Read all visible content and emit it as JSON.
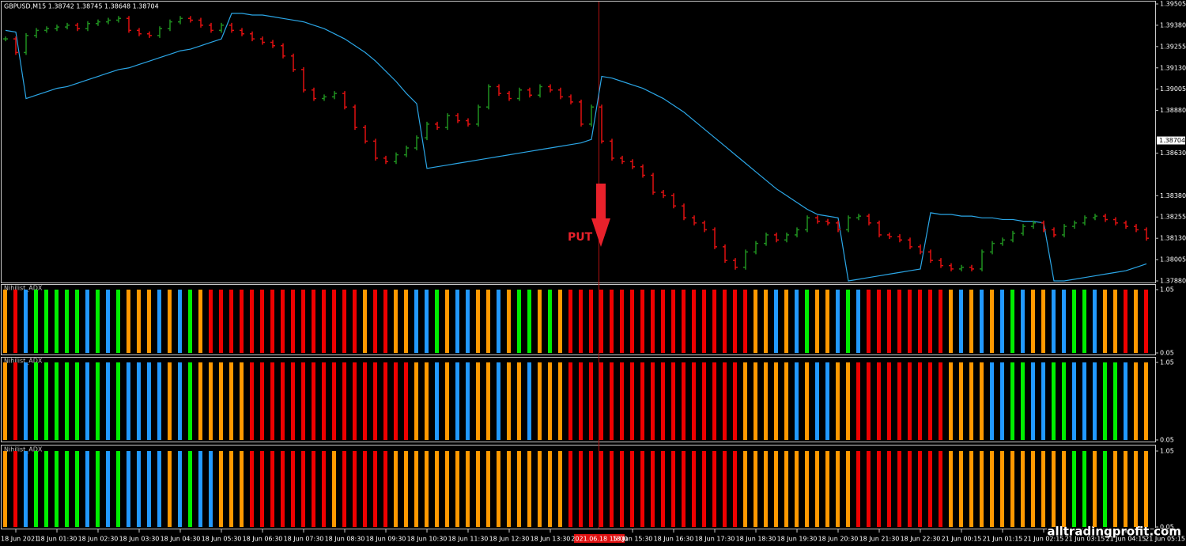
{
  "chart_data": [
    {
      "type": "candlestick",
      "title": "GBPUSD,M15  1.38742 1.38745 1.38648 1.38704",
      "categories": [
        null,
        "18 Jun 2021",
        null,
        null,
        null,
        "18 Jun 01:30",
        null,
        null,
        null,
        "18 Jun 02:30",
        null,
        null,
        null,
        "18 Jun 03:30",
        null,
        null,
        null,
        "18 Jun 04:30",
        null,
        null,
        null,
        "18 Jun 05:30",
        null,
        null,
        null,
        "18 Jun 06:30",
        null,
        null,
        null,
        "18 Jun 07:30",
        null,
        null,
        null,
        "18 Jun 08:30",
        null,
        null,
        null,
        "18 Jun 09:30",
        null,
        null,
        null,
        "18 Jun 10:30",
        null,
        null,
        null,
        "18 Jun 11:30",
        null,
        null,
        null,
        "18 Jun 12:30",
        null,
        null,
        null,
        "18 Jun 13:30",
        null,
        null,
        null,
        null,
        null,
        null,
        null,
        "18 Jun 15:30",
        null,
        null,
        null,
        "18 Jun 16:30",
        null,
        null,
        null,
        "18 Jun 17:30",
        null,
        null,
        null,
        "18 Jun 18:30",
        null,
        null,
        null,
        "18 Jun 19:30",
        null,
        null,
        null,
        "18 Jun 20:30",
        null,
        null,
        null,
        "18 Jun 21:30",
        null,
        null,
        null,
        "18 Jun 22:30",
        null,
        null,
        null,
        "21 Jun 00:15",
        null,
        null,
        null,
        "21 Jun 01:15",
        null,
        null,
        null,
        "21 Jun 02:15",
        null,
        null,
        null,
        "21 Jun 03:15",
        null,
        null,
        null,
        "21 Jun 04:15",
        null,
        null,
        null,
        "21 Jun 05:15"
      ],
      "values": [
        1.393,
        1.3922,
        1.3932,
        1.3935,
        1.3936,
        1.3937,
        1.3938,
        1.3936,
        1.3939,
        1.394,
        1.3941,
        1.3942,
        1.3935,
        1.3933,
        1.3932,
        1.3936,
        1.394,
        1.3942,
        1.3941,
        1.3938,
        1.3935,
        1.3938,
        1.3935,
        1.3933,
        1.393,
        1.3928,
        1.3926,
        1.392,
        1.3912,
        1.39,
        1.3895,
        1.3896,
        1.3898,
        1.389,
        1.3878,
        1.387,
        1.386,
        1.3858,
        1.3862,
        1.3866,
        1.3872,
        1.388,
        1.3878,
        1.3885,
        1.3882,
        1.388,
        1.389,
        1.3902,
        1.3898,
        1.3895,
        1.39,
        1.3897,
        1.3902,
        1.39,
        1.3896,
        1.3893,
        1.388,
        1.389,
        1.387,
        1.386,
        1.3858,
        1.3855,
        1.385,
        1.384,
        1.3838,
        1.3832,
        1.3825,
        1.3822,
        1.3818,
        1.3808,
        1.38,
        1.3796,
        1.3805,
        1.381,
        1.3815,
        1.3812,
        1.3815,
        1.3818,
        1.3825,
        1.3823,
        1.3822,
        1.3818,
        1.3825,
        1.3826,
        1.3822,
        1.3815,
        1.3814,
        1.3812,
        1.3808,
        1.3805,
        1.38,
        1.3797,
        1.3795,
        1.3796,
        1.3795,
        1.3805,
        1.381,
        1.3812,
        1.3816,
        1.382,
        1.3822,
        1.3818,
        1.3815,
        1.382,
        1.3822,
        1.3825,
        1.3826,
        1.3824,
        1.3822,
        1.382,
        1.3818,
        1.3813,
        null,
        null
      ],
      "up_color": "#1f8f1f",
      "down_color": "#e01010",
      "line": {
        "color": "#2ba6e6",
        "values": [
          1.3935,
          1.3934,
          1.3895,
          1.3897,
          1.3899,
          1.3901,
          1.3902,
          1.3904,
          1.3906,
          1.3908,
          1.391,
          1.3912,
          1.3913,
          1.3915,
          1.3917,
          1.3919,
          1.3921,
          1.3923,
          1.3924,
          1.3926,
          1.3928,
          1.393,
          1.3945,
          1.3945,
          1.3944,
          1.3944,
          1.3943,
          1.3942,
          1.3941,
          1.394,
          1.3938,
          1.3936,
          1.3933,
          1.393,
          1.3926,
          1.3922,
          1.3917,
          1.3911,
          1.3905,
          1.3898,
          1.3892,
          1.3854,
          1.3855,
          1.3856,
          1.3857,
          1.3858,
          1.3859,
          1.386,
          1.3861,
          1.3862,
          1.3863,
          1.3864,
          1.3865,
          1.3866,
          1.3867,
          1.3868,
          1.3869,
          1.3871,
          1.3908,
          1.3907,
          1.3905,
          1.3903,
          1.3901,
          1.3898,
          1.3895,
          1.3891,
          1.3887,
          1.3882,
          1.3877,
          1.3872,
          1.3867,
          1.3862,
          1.3857,
          1.3852,
          1.3847,
          1.3842,
          1.3838,
          1.3834,
          1.383,
          1.3827,
          1.3826,
          1.3825,
          1.3788,
          1.3789,
          1.379,
          1.3791,
          1.3792,
          1.3793,
          1.3794,
          1.3795,
          1.3828,
          1.3827,
          1.3827,
          1.3826,
          1.3826,
          1.3825,
          1.3825,
          1.3824,
          1.3824,
          1.3823,
          1.3823,
          1.3822,
          1.3788,
          1.3788,
          1.3789,
          1.379,
          1.3791,
          1.3792,
          1.3793,
          1.3794,
          1.3796,
          1.3798,
          null,
          null
        ]
      },
      "ylim": [
        1.3788,
        1.39505
      ],
      "yticks": [
        1.39505,
        {
          "value": 1.3938,
          "label": "1.39380"
        },
        1.39255,
        {
          "value": 1.3913,
          "label": "1.39130"
        },
        1.39005,
        {
          "value": 1.3888,
          "label": "1.38880"
        },
        {
          "value": 1.3863,
          "label": "1.38630"
        },
        {
          "value": 1.3838,
          "label": "1.38380"
        },
        1.38255,
        {
          "value": 1.3813,
          "label": "1.38130"
        },
        1.38005,
        {
          "value": 1.3788,
          "label": "1.37880"
        }
      ],
      "last_price": 1.38704,
      "annotation": "PUT",
      "cursor": "2021.06.18 15:00",
      "watermark": "alltradingprofit.com",
      "grid": false
    },
    {
      "type": "bar",
      "title": "Nihilist_ADX",
      "ylim": [
        0.05,
        1.05
      ],
      "yticks": [
        0.05,
        1.05
      ],
      "values": [
        1.05,
        1.05,
        1.05,
        1.05,
        1.05,
        1.05,
        1.05,
        1.05,
        1.05,
        1.05,
        1.05,
        1.05,
        1.05,
        1.05,
        1.05,
        1.05,
        1.05,
        1.05,
        1.05,
        1.05,
        1.05,
        1.05,
        1.05,
        1.05,
        1.05,
        1.05,
        1.05,
        1.05,
        1.05,
        1.05,
        1.05,
        1.05,
        1.05,
        1.05,
        1.05,
        1.05,
        1.05,
        1.05,
        1.05,
        1.05,
        1.05,
        1.05,
        1.05,
        1.05,
        1.05,
        1.05,
        1.05,
        1.05,
        1.05,
        1.05,
        1.05,
        1.05,
        1.05,
        1.05,
        1.05,
        1.05,
        1.05,
        1.05,
        1.05,
        1.05,
        1.05,
        1.05,
        1.05,
        1.05,
        1.05,
        1.05,
        1.05,
        1.05,
        1.05,
        1.05,
        1.05,
        1.05,
        1.05,
        1.05,
        1.05,
        1.05,
        1.05,
        1.05,
        1.05,
        1.05,
        1.05,
        1.05,
        1.05,
        1.05,
        1.05,
        1.05,
        1.05,
        1.05,
        1.05,
        1.05,
        1.05,
        1.05,
        1.05,
        1.05,
        1.05,
        1.05,
        1.05,
        1.05,
        1.05,
        1.05,
        1.05,
        1.05,
        1.05,
        1.05,
        1.05,
        1.05,
        1.05,
        1.05,
        1.05,
        1.05,
        1.05,
        1.05
      ],
      "colors": [
        "#f90",
        "#e00",
        "#29f",
        "#0e0",
        "#0e0",
        "#0e0",
        "#0e0",
        "#0e0",
        "#29f",
        "#0e0",
        "#29f",
        "#0e0",
        "#f90",
        "#f90",
        "#f90",
        "#29f",
        "#f90",
        "#29f",
        "#0e0",
        "#f90",
        "#e00",
        "#e00",
        "#e00",
        "#e00",
        "#e00",
        "#e00",
        "#e00",
        "#e00",
        "#e00",
        "#e00",
        "#e00",
        "#e00",
        "#e00",
        "#e00",
        "#e00",
        "#f90",
        "#e00",
        "#e00",
        "#f90",
        "#f90",
        "#29f",
        "#29f",
        "#0e0",
        "#f90",
        "#29f",
        "#29f",
        "#f90",
        "#f90",
        "#29f",
        "#f90",
        "#0e0",
        "#0e0",
        "#f90",
        "#0e0",
        "#f90",
        "#e00",
        "#e00",
        "#e00",
        "#e00",
        "#e00",
        "#e00",
        "#e00",
        "#e00",
        "#e00",
        "#e00",
        "#e00",
        "#e00",
        "#e00",
        "#e00",
        "#e00",
        "#e00",
        "#e00",
        "#e00",
        "#f90",
        "#f90",
        "#29f",
        "#f90",
        "#29f",
        "#0e0",
        "#f90",
        "#f90",
        "#29f",
        "#0e0",
        "#29f",
        "#e00",
        "#e00",
        "#e00",
        "#e00",
        "#e00",
        "#e00",
        "#e00",
        "#e00",
        "#f90",
        "#29f",
        "#f90",
        "#29f",
        "#f90",
        "#29f",
        "#0e0",
        "#29f",
        "#f90",
        "#f90",
        "#29f",
        "#29f",
        "#0e0",
        "#0e0",
        "#29f",
        "#f90",
        "#f90",
        "#e00",
        "#f90",
        "#e00"
      ]
    },
    {
      "type": "bar",
      "title": "Nihilist_ADX",
      "ylim": [
        0.05,
        1.05
      ],
      "yticks": [
        0.05,
        1.05
      ],
      "values": [
        1.05,
        1.05,
        1.05,
        1.05,
        1.05,
        1.05,
        1.05,
        1.05,
        1.05,
        1.05,
        1.05,
        1.05,
        1.05,
        1.05,
        1.05,
        1.05,
        1.05,
        1.05,
        1.05,
        1.05,
        1.05,
        1.05,
        1.05,
        1.05,
        1.05,
        1.05,
        1.05,
        1.05,
        1.05,
        1.05,
        1.05,
        1.05,
        1.05,
        1.05,
        1.05,
        1.05,
        1.05,
        1.05,
        1.05,
        1.05,
        1.05,
        1.05,
        1.05,
        1.05,
        1.05,
        1.05,
        1.05,
        1.05,
        1.05,
        1.05,
        1.05,
        1.05,
        1.05,
        1.05,
        1.05,
        1.05,
        1.05,
        1.05,
        1.05,
        1.05,
        1.05,
        1.05,
        1.05,
        1.05,
        1.05,
        1.05,
        1.05,
        1.05,
        1.05,
        1.05,
        1.05,
        1.05,
        1.05,
        1.05,
        1.05,
        1.05,
        1.05,
        1.05,
        1.05,
        1.05,
        1.05,
        1.05,
        1.05,
        1.05,
        1.05,
        1.05,
        1.05,
        1.05,
        1.05,
        1.05,
        1.05,
        1.05,
        1.05,
        1.05,
        1.05,
        1.05,
        1.05,
        1.05,
        1.05,
        1.05,
        1.05,
        1.05,
        1.05,
        1.05,
        1.05,
        1.05,
        1.05,
        1.05,
        1.05,
        1.05,
        1.05,
        1.05
      ],
      "colors": [
        "#f90",
        "#e00",
        "#29f",
        "#0e0",
        "#0e0",
        "#0e0",
        "#0e0",
        "#0e0",
        "#29f",
        "#0e0",
        "#29f",
        "#0e0",
        "#29f",
        "#29f",
        "#29f",
        "#29f",
        "#f90",
        "#29f",
        "#0e0",
        "#f90",
        "#f90",
        "#f90",
        "#f90",
        "#f90",
        "#e00",
        "#e00",
        "#e00",
        "#e00",
        "#e00",
        "#e00",
        "#e00",
        "#e00",
        "#e00",
        "#e00",
        "#e00",
        "#e00",
        "#e00",
        "#e00",
        "#e00",
        "#e00",
        "#f90",
        "#f90",
        "#29f",
        "#f90",
        "#29f",
        "#29f",
        "#f90",
        "#f90",
        "#29f",
        "#f90",
        "#f90",
        "#29f",
        "#f90",
        "#f90",
        "#f90",
        "#e00",
        "#e00",
        "#e00",
        "#e00",
        "#e00",
        "#e00",
        "#e00",
        "#e00",
        "#e00",
        "#e00",
        "#e00",
        "#e00",
        "#e00",
        "#e00",
        "#e00",
        "#e00",
        "#e00",
        "#f90",
        "#f90",
        "#f90",
        "#f90",
        "#f90",
        "#29f",
        "#f90",
        "#29f",
        "#29f",
        "#f90",
        "#f90",
        "#e00",
        "#e00",
        "#e00",
        "#e00",
        "#e00",
        "#e00",
        "#e00",
        "#e00",
        "#e00",
        "#f90",
        "#f90",
        "#f90",
        "#f90",
        "#29f",
        "#29f",
        "#0e0",
        "#0e0",
        "#29f",
        "#29f",
        "#0e0",
        "#0e0",
        "#29f",
        "#29f",
        "#29f",
        "#0e0",
        "#0e0",
        "#29f",
        "#f90",
        "#f90"
      ]
    },
    {
      "type": "bar",
      "title": "Nihilist_ADX",
      "ylim": [
        0.05,
        1.05
      ],
      "yticks": [
        0.05,
        1.05
      ],
      "values": [
        1.05,
        1.05,
        1.05,
        1.05,
        1.05,
        1.05,
        1.05,
        1.05,
        1.05,
        1.05,
        1.05,
        1.05,
        1.05,
        1.05,
        1.05,
        1.05,
        1.05,
        1.05,
        1.05,
        1.05,
        1.05,
        1.05,
        1.05,
        1.05,
        1.05,
        1.05,
        1.05,
        1.05,
        1.05,
        1.05,
        1.05,
        1.05,
        1.05,
        1.05,
        1.05,
        1.05,
        1.05,
        1.05,
        1.05,
        1.05,
        1.05,
        1.05,
        1.05,
        1.05,
        1.05,
        1.05,
        1.05,
        1.05,
        1.05,
        1.05,
        1.05,
        1.05,
        1.05,
        1.05,
        1.05,
        1.05,
        1.05,
        1.05,
        1.05,
        1.05,
        1.05,
        1.05,
        1.05,
        1.05,
        1.05,
        1.05,
        1.05,
        1.05,
        1.05,
        1.05,
        1.05,
        1.05,
        1.05,
        1.05,
        1.05,
        1.05,
        1.05,
        1.05,
        1.05,
        1.05,
        1.05,
        1.05,
        1.05,
        1.05,
        1.05,
        1.05,
        1.05,
        1.05,
        1.05,
        1.05,
        1.05,
        1.05,
        1.05,
        1.05,
        1.05,
        1.05,
        1.05,
        1.05,
        1.05,
        1.05,
        1.05,
        1.05,
        1.05,
        1.05,
        1.05,
        1.05,
        1.05,
        1.05,
        1.05,
        1.05,
        1.05,
        1.05
      ],
      "colors": [
        "#f90",
        "#e00",
        "#29f",
        "#0e0",
        "#0e0",
        "#0e0",
        "#0e0",
        "#0e0",
        "#29f",
        "#0e0",
        "#29f",
        "#0e0",
        "#29f",
        "#29f",
        "#29f",
        "#29f",
        "#f90",
        "#29f",
        "#0e0",
        "#29f",
        "#29f",
        "#f90",
        "#f90",
        "#f90",
        "#e00",
        "#e00",
        "#e00",
        "#e00",
        "#e00",
        "#e00",
        "#e00",
        "#e00",
        "#f90",
        "#e00",
        "#e00",
        "#e00",
        "#e00",
        "#e00",
        "#f90",
        "#f90",
        "#f90",
        "#f90",
        "#f90",
        "#f90",
        "#f90",
        "#f90",
        "#f90",
        "#f90",
        "#f90",
        "#f90",
        "#f90",
        "#f90",
        "#f90",
        "#f90",
        "#f90",
        "#e00",
        "#e00",
        "#e00",
        "#e00",
        "#e00",
        "#e00",
        "#e00",
        "#e00",
        "#e00",
        "#e00",
        "#e00",
        "#e00",
        "#e00",
        "#e00",
        "#e00",
        "#e00",
        "#e00",
        "#f90",
        "#f90",
        "#f90",
        "#f90",
        "#f90",
        "#f90",
        "#f90",
        "#f90",
        "#f90",
        "#f90",
        "#f90",
        "#e00",
        "#e00",
        "#e00",
        "#e00",
        "#e00",
        "#e00",
        "#e00",
        "#e00",
        "#e00",
        "#f90",
        "#f90",
        "#f90",
        "#f90",
        "#f90",
        "#f90",
        "#f90",
        "#f90",
        "#f90",
        "#f90",
        "#f90",
        "#f90",
        "#0e0",
        "#0e0",
        "#f90",
        "#0e0",
        "#f90",
        "#f90",
        "#f90",
        "#f90"
      ]
    }
  ]
}
